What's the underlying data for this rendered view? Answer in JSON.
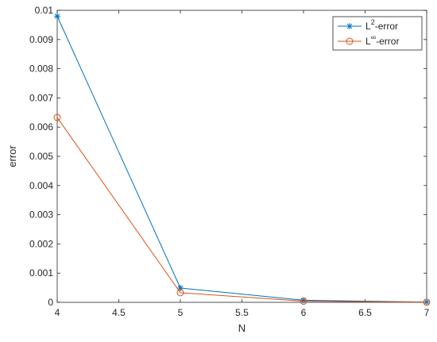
{
  "chart_data": {
    "type": "line",
    "title": "",
    "xlabel": "N",
    "ylabel": "error",
    "xlim": [
      4,
      7
    ],
    "ylim": [
      0,
      0.01
    ],
    "xticks": [
      4,
      4.5,
      5,
      5.5,
      6,
      6.5,
      7
    ],
    "xtick_labels": [
      "4",
      "4.5",
      "5",
      "5.5",
      "6",
      "6.5",
      "7"
    ],
    "yticks": [
      0,
      0.001,
      0.002,
      0.003,
      0.004,
      0.005,
      0.006,
      0.007,
      0.008,
      0.009,
      0.01
    ],
    "ytick_labels": [
      "0",
      "0.001",
      "0.002",
      "0.003",
      "0.004",
      "0.005",
      "0.006",
      "0.007",
      "0.008",
      "0.009",
      "0.01"
    ],
    "grid": false,
    "legend_position": "top-right",
    "x": [
      4,
      5,
      6,
      7
    ],
    "series": [
      {
        "name_base": "L",
        "name_sup": "2",
        "name_rest": "-error",
        "marker": "asterisk",
        "color": "#0072BD",
        "values": [
          0.0098,
          0.00049,
          7e-05,
          1e-05
        ]
      },
      {
        "name_base": "L",
        "name_sup": "∞",
        "name_rest": "-error",
        "marker": "circle",
        "color": "#D95319",
        "values": [
          0.00633,
          0.00033,
          4e-05,
          5e-06
        ]
      }
    ]
  }
}
